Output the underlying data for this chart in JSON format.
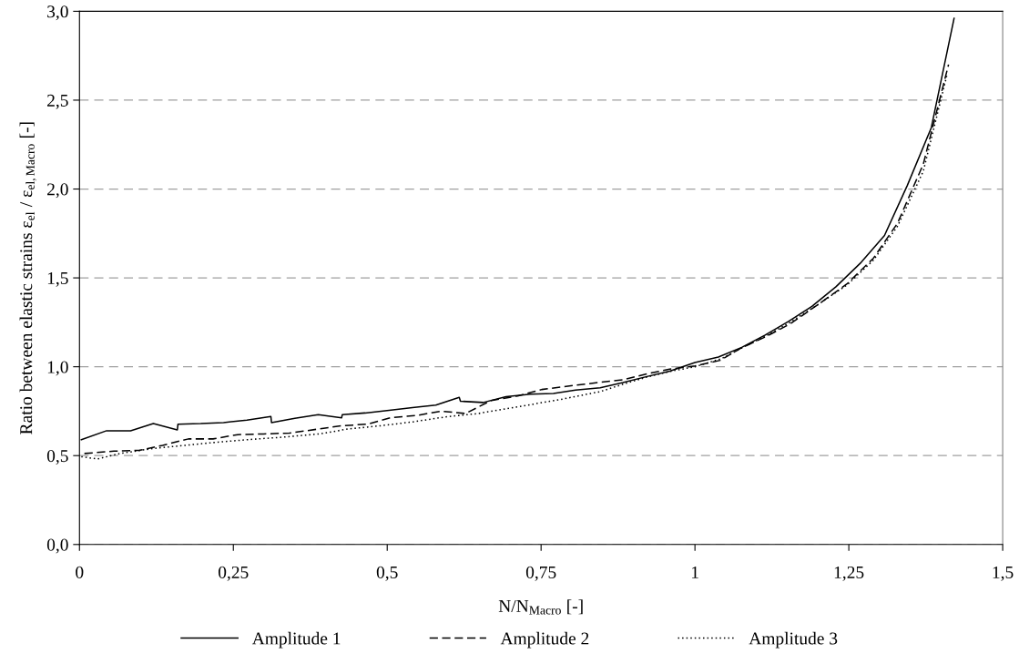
{
  "chart_data": {
    "type": "line",
    "xlabel": "N/N$_{Macro}$ [-]",
    "ylabel": "Ratio between elastic strains ε$_{el}$ / ε$_{el,Macro}$ [-]",
    "xlim": [
      0,
      1.5
    ],
    "ylim": [
      0,
      3.0
    ],
    "xticks": [
      0,
      {
        "value": 0.25,
        "label": "0,25"
      },
      {
        "value": 0.5,
        "label": "0,5"
      },
      {
        "value": 0.75,
        "label": "0,75"
      },
      1,
      {
        "value": 1.25,
        "label": "1,25"
      },
      {
        "value": 1.5,
        "label": "1,5"
      }
    ],
    "yticks": [
      {
        "value": 0,
        "label": "0,0"
      },
      {
        "value": 0.5,
        "label": "0,5"
      },
      {
        "value": 1.0,
        "label": "1,0"
      },
      {
        "value": 1.5,
        "label": "1,5"
      },
      {
        "value": 2.0,
        "label": "2,0"
      },
      {
        "value": 2.5,
        "label": "2,5"
      },
      {
        "value": 3.0,
        "label": "3,0"
      }
    ],
    "grid": "y",
    "legend": "bottom",
    "marker": "none",
    "series": [
      {
        "name": "Amplitude 1",
        "color": "#000000",
        "line_style": "solid",
        "x": [
          0.003,
          0.044,
          0.083,
          0.12,
          0.159,
          0.16,
          0.197,
          0.234,
          0.272,
          0.311,
          0.312,
          0.35,
          0.388,
          0.426,
          0.427,
          0.464,
          0.503,
          0.541,
          0.579,
          0.617,
          0.619,
          0.656,
          0.693,
          0.733,
          0.77,
          0.806,
          0.846,
          0.883,
          0.922,
          0.959,
          1.0,
          1.038,
          1.076,
          1.114,
          1.152,
          1.19,
          1.229,
          1.27,
          1.308,
          1.345,
          1.384,
          1.421
        ],
        "values": [
          0.59,
          0.64,
          0.64,
          0.68,
          0.645,
          0.677,
          0.68,
          0.686,
          0.7,
          0.72,
          0.686,
          0.71,
          0.73,
          0.713,
          0.731,
          0.74,
          0.755,
          0.77,
          0.784,
          0.828,
          0.806,
          0.799,
          0.832,
          0.846,
          0.85,
          0.869,
          0.882,
          0.911,
          0.945,
          0.975,
          1.024,
          1.055,
          1.109,
          1.178,
          1.255,
          1.34,
          1.45,
          1.587,
          1.739,
          2.02,
          2.345,
          2.96
        ]
      },
      {
        "name": "Amplitude 2",
        "color": "#000000",
        "line_style": "dashed",
        "x": [
          0.008,
          0.056,
          0.098,
          0.135,
          0.177,
          0.217,
          0.257,
          0.299,
          0.341,
          0.389,
          0.426,
          0.468,
          0.505,
          0.548,
          0.587,
          0.627,
          0.669,
          0.712,
          0.751,
          0.806,
          0.843,
          0.883,
          0.922,
          0.959,
          1.0,
          1.041,
          1.075,
          1.115,
          1.155,
          1.2,
          1.247,
          1.29,
          1.329,
          1.371,
          1.412
        ],
        "values": [
          0.512,
          0.525,
          0.53,
          0.558,
          0.594,
          0.594,
          0.618,
          0.622,
          0.627,
          0.65,
          0.668,
          0.677,
          0.713,
          0.726,
          0.75,
          0.737,
          0.81,
          0.836,
          0.872,
          0.896,
          0.911,
          0.927,
          0.96,
          0.987,
          1.005,
          1.036,
          1.105,
          1.169,
          1.242,
          1.35,
          1.466,
          1.611,
          1.807,
          2.14,
          2.7
        ]
      },
      {
        "name": "Amplitude 3",
        "color": "#000000",
        "line_style": "dotted",
        "x": [
          0.003,
          0.029,
          0.066,
          0.119,
          0.172,
          0.225,
          0.278,
          0.331,
          0.389,
          0.437,
          0.489,
          0.542,
          0.595,
          0.648,
          0.701,
          0.78,
          0.846,
          0.886,
          0.922,
          0.965,
          1.0,
          1.044,
          1.081,
          1.118,
          1.155,
          1.2,
          1.247,
          1.29,
          1.329,
          1.371,
          1.41
        ],
        "values": [
          0.494,
          0.481,
          0.512,
          0.54,
          0.558,
          0.576,
          0.591,
          0.604,
          0.622,
          0.65,
          0.668,
          0.69,
          0.718,
          0.737,
          0.768,
          0.815,
          0.86,
          0.905,
          0.942,
          0.978,
          1.0,
          1.047,
          1.115,
          1.178,
          1.251,
          1.35,
          1.46,
          1.6,
          1.79,
          2.1,
          2.65
        ]
      }
    ]
  }
}
